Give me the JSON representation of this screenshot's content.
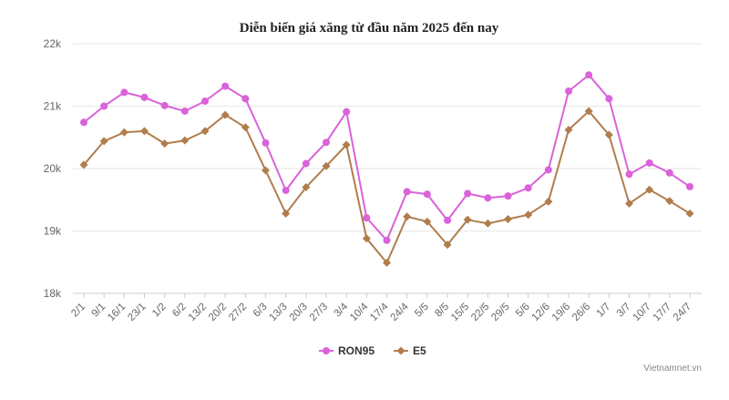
{
  "chart_data": {
    "type": "line",
    "title": "Diễn biến giá xăng từ đầu năm 2025 đến nay",
    "xlabel": "",
    "ylabel": "",
    "categories": [
      "2/1",
      "9/1",
      "16/1",
      "23/1",
      "1/2",
      "6/2",
      "13/2",
      "20/2",
      "27/2",
      "6/3",
      "13/3",
      "20/3",
      "27/3",
      "3/4",
      "10/4",
      "17/4",
      "24/4",
      "5/5",
      "8/5",
      "15/5",
      "22/5",
      "29/5",
      "5/6",
      "12/6",
      "19/6",
      "26/6",
      "1/7",
      "3/7",
      "10/7",
      "17/7",
      "24/7"
    ],
    "y_ticks": [
      "18k",
      "19k",
      "20k",
      "21k",
      "22k"
    ],
    "ylim": [
      18000,
      22000
    ],
    "grid": true,
    "legend_position": "bottom",
    "series": [
      {
        "name": "RON95",
        "color": "#da62da",
        "marker": "circle",
        "values": [
          20740,
          21000,
          21220,
          21140,
          21010,
          20920,
          21080,
          21320,
          21120,
          20410,
          19650,
          20080,
          20420,
          20910,
          19210,
          18850,
          19630,
          19590,
          19170,
          19600,
          19530,
          19560,
          19690,
          19980,
          21240,
          21500,
          21120,
          19910,
          20090,
          19930,
          19710
        ]
      },
      {
        "name": "E5",
        "color": "#b07d4c",
        "marker": "diamond",
        "values": [
          20060,
          20440,
          20580,
          20600,
          20400,
          20450,
          20600,
          20860,
          20660,
          19970,
          19280,
          19700,
          20040,
          20380,
          18880,
          18490,
          19230,
          19150,
          18780,
          19180,
          19120,
          19190,
          19260,
          19470,
          20620,
          20920,
          20540,
          19440,
          19660,
          19480,
          19280
        ]
      }
    ],
    "credit": "Vietnamnet.vn"
  }
}
